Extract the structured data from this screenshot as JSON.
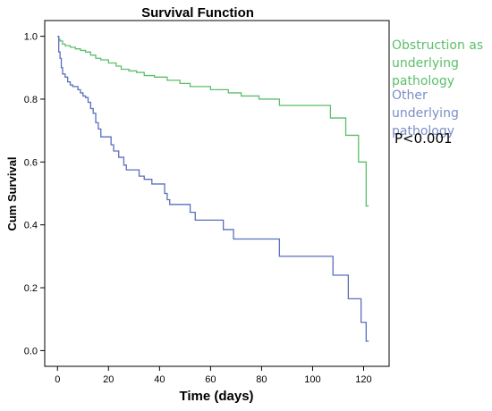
{
  "chart_data": {
    "type": "line",
    "title": "Survival Function",
    "xlabel": "Time (days)",
    "ylabel": "Cum Survival",
    "xlim": [
      -5,
      130
    ],
    "ylim": [
      -0.05,
      1.05
    ],
    "x_ticks": [
      0,
      20,
      40,
      60,
      80,
      100,
      120
    ],
    "y_ticks": [
      0.0,
      0.2,
      0.4,
      0.6,
      0.8,
      1.0
    ],
    "grid": false,
    "legend_position": "right",
    "annotation": "P<0.001",
    "series": [
      {
        "name": "Obstruction as underlying pathology",
        "color": "#5cbf6b",
        "step_points": [
          [
            0,
            1.0
          ],
          [
            0.5,
            0.99
          ],
          [
            1,
            0.985
          ],
          [
            2,
            0.975
          ],
          [
            3,
            0.97
          ],
          [
            5,
            0.965
          ],
          [
            7,
            0.96
          ],
          [
            9,
            0.955
          ],
          [
            11,
            0.95
          ],
          [
            13,
            0.94
          ],
          [
            15,
            0.93
          ],
          [
            17,
            0.925
          ],
          [
            20,
            0.915
          ],
          [
            23,
            0.905
          ],
          [
            25,
            0.895
          ],
          [
            28,
            0.89
          ],
          [
            31,
            0.885
          ],
          [
            34,
            0.875
          ],
          [
            38,
            0.87
          ],
          [
            43,
            0.86
          ],
          [
            48,
            0.85
          ],
          [
            52,
            0.84
          ],
          [
            60,
            0.83
          ],
          [
            67,
            0.82
          ],
          [
            72,
            0.81
          ],
          [
            79,
            0.8
          ],
          [
            87,
            0.78
          ],
          [
            107,
            0.74
          ],
          [
            113,
            0.685
          ],
          [
            118,
            0.6
          ],
          [
            121,
            0.46
          ],
          [
            122,
            0.46
          ]
        ]
      },
      {
        "name": "Other underlying pathology",
        "color": "#5a6fbd",
        "step_points": [
          [
            0,
            1.0
          ],
          [
            0.5,
            0.95
          ],
          [
            1,
            0.93
          ],
          [
            1.5,
            0.9
          ],
          [
            2,
            0.88
          ],
          [
            3,
            0.87
          ],
          [
            4,
            0.855
          ],
          [
            5,
            0.845
          ],
          [
            6,
            0.84
          ],
          [
            8,
            0.83
          ],
          [
            9,
            0.82
          ],
          [
            10,
            0.81
          ],
          [
            11,
            0.805
          ],
          [
            12,
            0.79
          ],
          [
            13,
            0.77
          ],
          [
            14,
            0.755
          ],
          [
            15,
            0.725
          ],
          [
            16,
            0.705
          ],
          [
            17,
            0.68
          ],
          [
            21,
            0.655
          ],
          [
            22,
            0.635
          ],
          [
            24,
            0.615
          ],
          [
            26,
            0.59
          ],
          [
            27,
            0.575
          ],
          [
            32,
            0.555
          ],
          [
            34,
            0.545
          ],
          [
            37,
            0.53
          ],
          [
            42,
            0.5
          ],
          [
            43,
            0.48
          ],
          [
            44,
            0.465
          ],
          [
            52,
            0.44
          ],
          [
            54,
            0.415
          ],
          [
            65,
            0.385
          ],
          [
            69,
            0.355
          ],
          [
            87,
            0.3
          ],
          [
            108,
            0.24
          ],
          [
            114,
            0.165
          ],
          [
            119,
            0.09
          ],
          [
            121,
            0.03
          ],
          [
            122,
            0.03
          ]
        ]
      }
    ]
  },
  "legend": {
    "items": [
      {
        "label": "Obstruction as underlying pathology",
        "color": "#5cbf6b"
      },
      {
        "label": "Other underlying pathology",
        "color": "#7b8fc8"
      }
    ]
  }
}
